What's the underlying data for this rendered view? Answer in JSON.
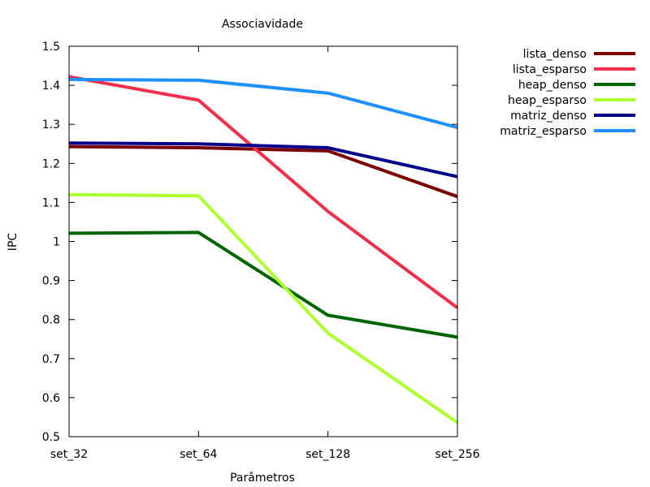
{
  "chart_data": {
    "type": "line",
    "title": "Associavidade",
    "xlabel": "Parâmetros",
    "ylabel": "IPC",
    "categories": [
      "set_32",
      "set_64",
      "set_128",
      "set_256"
    ],
    "ylim": [
      0.5,
      1.5
    ],
    "yticks": [
      "0.5",
      "0.6",
      "0.7",
      "0.8",
      "0.9",
      "1",
      "1.1",
      "1.2",
      "1.3",
      "1.4",
      "1.5"
    ],
    "grid": false,
    "legend_position": "top-right outside",
    "series": [
      {
        "name": "lista_denso",
        "color": "#7a0000",
        "values": [
          1.243,
          1.24,
          1.232,
          1.115
        ]
      },
      {
        "name": "lista_esparso",
        "color": "#f0304a",
        "values": [
          1.422,
          1.362,
          1.077,
          0.83
        ]
      },
      {
        "name": "heap_denso",
        "color": "#006400",
        "values": [
          1.021,
          1.023,
          0.811,
          0.755
        ]
      },
      {
        "name": "heap_esparso",
        "color": "#adff2f",
        "values": [
          1.12,
          1.117,
          0.765,
          0.536
        ]
      },
      {
        "name": "matriz_denso",
        "color": "#00008b",
        "values": [
          1.252,
          1.25,
          1.24,
          1.166
        ]
      },
      {
        "name": "matriz_esparso",
        "color": "#1e90ff",
        "values": [
          1.415,
          1.413,
          1.38,
          1.292
        ]
      }
    ]
  }
}
